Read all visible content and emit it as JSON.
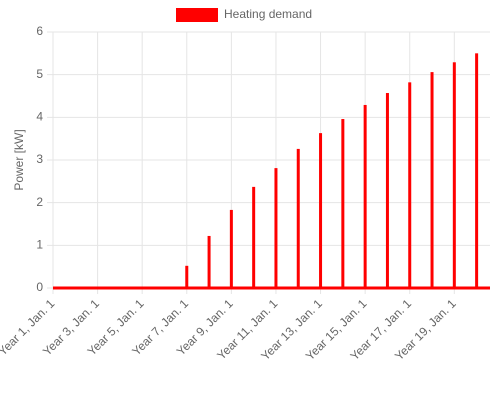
{
  "chart_data": {
    "type": "spike",
    "legend": "top",
    "y_label": "Power [kW]",
    "series": [
      {
        "name": "Heating demand",
        "color": "#ff0000",
        "x": [
          1,
          2,
          3,
          4,
          5,
          6,
          7,
          8,
          9,
          10,
          11,
          12,
          13,
          14,
          15,
          16,
          17,
          18,
          19,
          20
        ],
        "values": [
          0,
          0,
          0,
          0,
          0,
          0,
          0.52,
          1.22,
          1.83,
          2.37,
          2.81,
          3.26,
          3.63,
          3.96,
          4.29,
          4.57,
          4.82,
          5.06,
          5.29,
          5.5
        ]
      }
    ],
    "xlim": [
      1,
      20.6
    ],
    "xticks": [
      {
        "value": 1,
        "label": "Year 1, Jan. 1"
      },
      {
        "value": 3,
        "label": "Year 3, Jan. 1"
      },
      {
        "value": 5,
        "label": "Year 5, Jan. 1"
      },
      {
        "value": 7,
        "label": "Year 7, Jan. 1"
      },
      {
        "value": 9,
        "label": "Year 9, Jan. 1"
      },
      {
        "value": 11,
        "label": "Year 11, Jan. 1"
      },
      {
        "value": 13,
        "label": "Year 13, Jan. 1"
      },
      {
        "value": 15,
        "label": "Year 15, Jan. 1"
      },
      {
        "value": 17,
        "label": "Year 17, Jan. 1"
      },
      {
        "value": 19,
        "label": "Year 19, Jan. 1"
      }
    ],
    "ylim": [
      0,
      6
    ],
    "yticks": [
      0,
      1,
      2,
      3,
      4,
      5,
      6
    ],
    "grid": true
  }
}
